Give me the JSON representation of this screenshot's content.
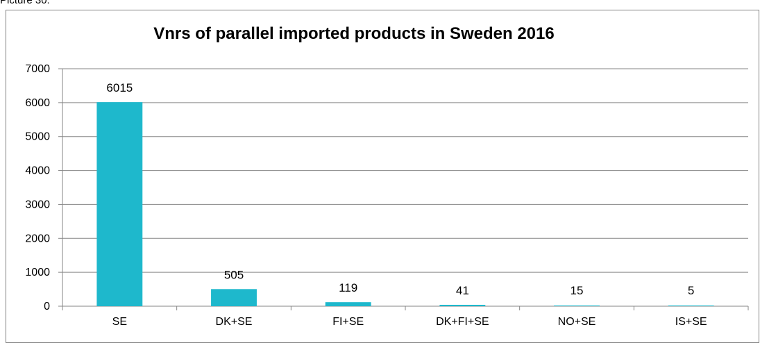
{
  "caption": "Picture 30:",
  "chart_data": {
    "type": "bar",
    "title": "Vnrs of parallel imported products in Sweden 2016",
    "categories": [
      "SE",
      "DK+SE",
      "FI+SE",
      "DK+FI+SE",
      "NO+SE",
      "IS+SE"
    ],
    "values": [
      6015,
      505,
      119,
      41,
      15,
      5
    ],
    "data_labels": [
      "6015",
      "505",
      "119",
      "41",
      "15",
      "5"
    ],
    "xlabel": "",
    "ylabel": "",
    "ylim": [
      0,
      7000
    ],
    "yticks": [
      0,
      1000,
      2000,
      3000,
      4000,
      5000,
      6000,
      7000
    ],
    "grid": true,
    "legend": "none",
    "bar_color": "#1eb8cc"
  }
}
